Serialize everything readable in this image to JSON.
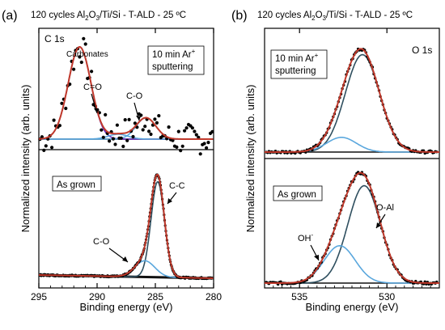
{
  "panel_labels": [
    "(a)",
    "(b)"
  ],
  "shared": {
    "ylabel": "Normalized intensity (arb. units)",
    "xlabel": "Binding energy (eV)"
  },
  "colors": {
    "fit_envelope": "#c0392b",
    "data_points": "#000000",
    "component_main": "#2f4f5f",
    "component_light": "#5aa7dd",
    "component_purple": "#6a2bbf",
    "background": "#111111"
  },
  "chart_data": [
    {
      "type": "line",
      "panel": "(a)",
      "title": "120 cycles Al2O3/Ti/Si - T-ALD - 25 ºC",
      "title_parts": {
        "pre": "120 cycles Al",
        "sub1": "2",
        "mid": "O",
        "sub2": "3",
        "post": "/Ti/Si - T-ALD - 25 ºC"
      },
      "xlabel": "Binding energy (eV)",
      "ylabel": "Normalized intensity (arb. units)",
      "x_reversed": true,
      "xlim": [
        295,
        280
      ],
      "xticks": [
        295,
        290,
        285,
        280
      ],
      "xtick_labels": [
        "295",
        "290",
        "285",
        "280"
      ],
      "core_level": "C 1s",
      "spectra": [
        {
          "condition_lines": [
            "10 min Ar",
            "sputtering"
          ],
          "condition_sup": "+",
          "components": [
            {
              "label": "Carbonates",
              "center": 291.5,
              "fwhm": 2.3,
              "height": 0.95,
              "color": "purple"
            },
            {
              "label": "C=O",
              "center": 288.2,
              "fwhm": 2.0,
              "height": 0.05,
              "color": "light"
            },
            {
              "label": "C-O",
              "center": 285.8,
              "fwhm": 2.0,
              "height": 0.22,
              "color": "light"
            }
          ]
        },
        {
          "condition_lines": [
            "As grown"
          ],
          "condition_sup": "",
          "components": [
            {
              "label": "C-C",
              "center": 284.8,
              "fwhm": 1.35,
              "height": 1.0,
              "color": "main"
            },
            {
              "label": "C-O",
              "center": 285.9,
              "fwhm": 2.0,
              "height": 0.17,
              "color": "light"
            }
          ]
        }
      ]
    },
    {
      "type": "line",
      "panel": "(b)",
      "title": "120 cycles Al2O3/Ti/Si - T-ALD - 25 ºC",
      "title_parts": {
        "pre": "120 cycles Al",
        "sub1": "2",
        "mid": "O",
        "sub2": "3",
        "post": "/Ti/Si - T-ALD - 25 ºC"
      },
      "xlabel": "Binding energy (eV)",
      "ylabel": "Normalized intensity (arb. units)",
      "x_reversed": true,
      "xlim": [
        537,
        527
      ],
      "xticks": [
        535,
        530
      ],
      "xtick_labels": [
        "535",
        "530"
      ],
      "core_level": "O 1s",
      "spectra": [
        {
          "condition_lines": [
            "10 min Ar",
            "sputtering"
          ],
          "condition_sup": "+",
          "components": [
            {
              "label": "O-Al",
              "center": 531.4,
              "fwhm": 2.3,
              "height": 0.86,
              "color": "main"
            },
            {
              "label": "OH",
              "center": 532.6,
              "fwhm": 2.0,
              "height": 0.13,
              "color": "light"
            }
          ]
        },
        {
          "condition_lines": [
            "As grown"
          ],
          "condition_sup": "",
          "components": [
            {
              "label": "O-Al",
              "center": 531.3,
              "fwhm": 2.2,
              "height": 0.86,
              "color": "main"
            },
            {
              "label": "OH",
              "center": 532.7,
              "fwhm": 2.1,
              "height": 0.33,
              "color": "light"
            }
          ]
        }
      ]
    }
  ],
  "annotations": {
    "c_carbonates": "Carbonates",
    "c_co_double": "C=O",
    "c_co_top": "C-O",
    "c_cc": "C-C",
    "c_co_bottom": "C-O",
    "o_oal": "O-Al",
    "o_oh": "OH",
    "o_oh_sup": "-"
  }
}
